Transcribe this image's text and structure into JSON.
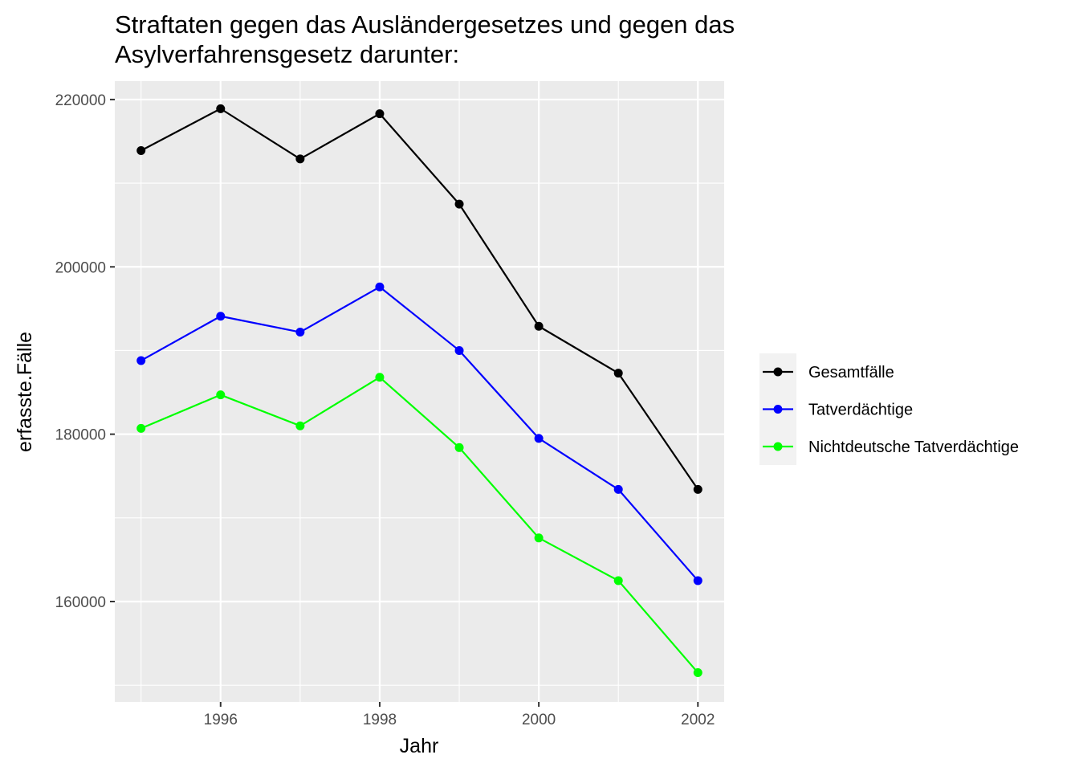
{
  "chart_data": {
    "type": "line",
    "title": "Straftaten gegen das Ausländergesetzes und gegen das\nAsylverfahrensgesetz darunter:",
    "xlabel": "Jahr",
    "ylabel": "erfasste.Fälle",
    "x": [
      1995,
      1996,
      1997,
      1998,
      1999,
      2000,
      2001,
      2002
    ],
    "xticks": [
      1996,
      1998,
      2000,
      2002
    ],
    "yticks": [
      160000,
      180000,
      200000,
      220000
    ],
    "xlim": [
      1994.67,
      2002.33
    ],
    "ylim": [
      148000,
      222200
    ],
    "grid": true,
    "legend_position": "right",
    "series": [
      {
        "name": "Gesamtfälle",
        "color": "#000000",
        "values": [
          213900,
          218900,
          212900,
          218300,
          207500,
          192900,
          187300,
          173400
        ]
      },
      {
        "name": "Tatverdächtige",
        "color": "#0000ff",
        "values": [
          188800,
          194100,
          192200,
          197600,
          190000,
          179500,
          173400,
          162500
        ]
      },
      {
        "name": "Nichtdeutsche Tatverdächtige",
        "color": "#00ff00",
        "values": [
          180700,
          184700,
          181000,
          186800,
          178400,
          167600,
          162500,
          151500
        ]
      }
    ]
  }
}
